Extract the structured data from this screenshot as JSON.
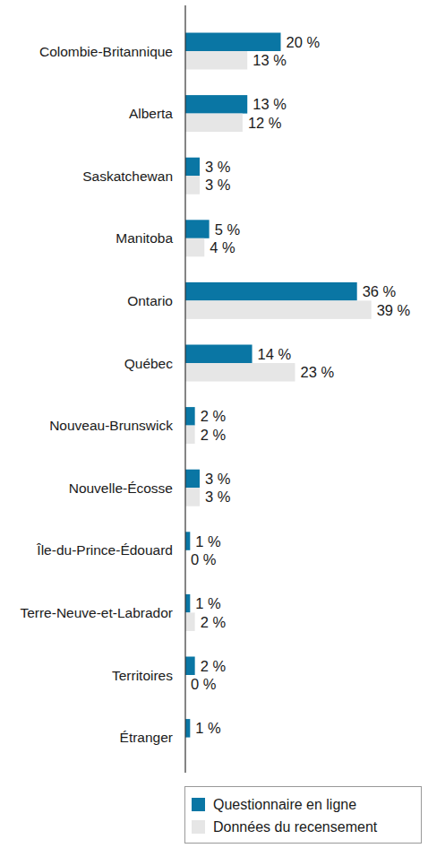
{
  "chart_data": {
    "type": "bar",
    "orientation": "horizontal",
    "data_labels": true,
    "tick_labels": "y",
    "legend": "bottom",
    "xlim": [
      0,
      40
    ],
    "categories": [
      "Colombie-Britannique",
      "Alberta",
      "Saskatchewan",
      "Manitoba",
      "Ontario",
      "Québec",
      "Nouveau-Brunswick",
      "Nouvelle-Écosse",
      "Île-du-Prince-Édouard",
      "Terre-Neuve-et-Labrador",
      "Territoires",
      "Étranger"
    ],
    "series": [
      {
        "name": "Questionnaire en ligne",
        "color": "#0a76a4",
        "values": [
          20,
          13,
          3,
          5,
          36,
          14,
          2,
          3,
          1,
          1,
          2,
          1
        ],
        "value_labels": [
          "20 %",
          "13 %",
          "3 %",
          "5 %",
          "36 %",
          "14 %",
          "2 %",
          "3 %",
          "1 %",
          "1 %",
          "2 %",
          "1 %"
        ]
      },
      {
        "name": "Données du recensement",
        "color": "#e6e6e6",
        "values": [
          13,
          12,
          3,
          4,
          39,
          23,
          2,
          3,
          0,
          2,
          0,
          null
        ],
        "value_labels": [
          "13 %",
          "12 %",
          "3 %",
          "4 %",
          "39 %",
          "23 %",
          "2 %",
          "3 %",
          "0 %",
          "2 %",
          "0 %",
          null
        ]
      }
    ]
  }
}
